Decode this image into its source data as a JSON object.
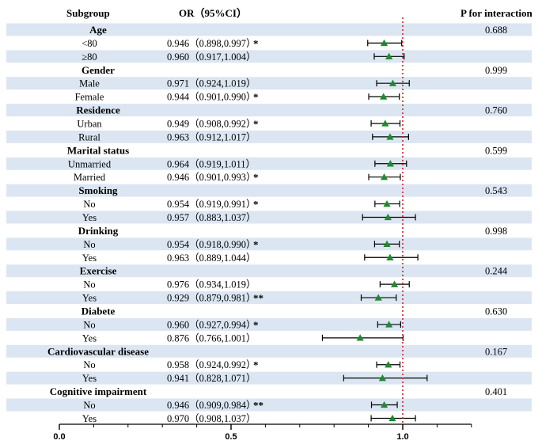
{
  "headers": {
    "subgroup": "Subgroup",
    "or": "OR（95%CI）",
    "p_interaction": "P for interaction"
  },
  "colors": {
    "stripe": "#dce6f2",
    "marker": "#1e8a2e",
    "reference_line": "#e8141a",
    "text": "#000000"
  },
  "chart_data": {
    "type": "forest",
    "title": "",
    "xlabel": "",
    "ylabel": "",
    "xlim": [
      0.0,
      1.2
    ],
    "x_ticks": [
      0.0,
      0.5,
      1.0
    ],
    "x_tick_labels": [
      "0.0",
      "0.5",
      "1.0"
    ],
    "reference_value": 1.0,
    "rows": [
      {
        "kind": "group",
        "label": "Age",
        "p": "0.688"
      },
      {
        "kind": "item",
        "label": "<80",
        "ci_text": "0.946（0.898,0.997）",
        "sig": "*",
        "or": 0.946,
        "lo": 0.898,
        "hi": 0.997
      },
      {
        "kind": "item",
        "label": "≥80",
        "ci_text": "0.960（0.917,1.004）",
        "sig": "",
        "or": 0.96,
        "lo": 0.917,
        "hi": 1.004
      },
      {
        "kind": "group",
        "label": "Gender",
        "p": "0.999"
      },
      {
        "kind": "item",
        "label": "Male",
        "ci_text": "0.971（0.924,1.019）",
        "sig": "",
        "or": 0.971,
        "lo": 0.924,
        "hi": 1.019
      },
      {
        "kind": "item",
        "label": "Female",
        "ci_text": "0.944（0.901,0.990）",
        "sig": "*",
        "or": 0.944,
        "lo": 0.901,
        "hi": 0.99
      },
      {
        "kind": "group",
        "label": "Residence",
        "p": "0.760"
      },
      {
        "kind": "item",
        "label": "Urban",
        "ci_text": "0.949（0.908,0.992）",
        "sig": "*",
        "or": 0.949,
        "lo": 0.908,
        "hi": 0.992
      },
      {
        "kind": "item",
        "label": "Rural",
        "ci_text": "0.963（0.912,1.017）",
        "sig": "",
        "or": 0.963,
        "lo": 0.912,
        "hi": 1.017
      },
      {
        "kind": "group",
        "label": "Marital status",
        "p": "0.599"
      },
      {
        "kind": "item",
        "label": "Unmarried",
        "ci_text": "0.964（0.919,1.011）",
        "sig": "",
        "or": 0.964,
        "lo": 0.919,
        "hi": 1.011
      },
      {
        "kind": "item",
        "label": "Married",
        "ci_text": "0.946（0.901,0.993）",
        "sig": "*",
        "or": 0.946,
        "lo": 0.901,
        "hi": 0.993
      },
      {
        "kind": "group",
        "label": "Smoking",
        "p": "0.543"
      },
      {
        "kind": "item",
        "label": "No",
        "ci_text": "0.954（0.919,0.991）",
        "sig": "*",
        "or": 0.954,
        "lo": 0.919,
        "hi": 0.991
      },
      {
        "kind": "item",
        "label": "Yes",
        "ci_text": "0.957（0.883,1.037）",
        "sig": "",
        "or": 0.957,
        "lo": 0.883,
        "hi": 1.037
      },
      {
        "kind": "group",
        "label": "Drinking",
        "p": "0.998"
      },
      {
        "kind": "item",
        "label": "No",
        "ci_text": "0.954（0.918,0.990）",
        "sig": "*",
        "or": 0.954,
        "lo": 0.918,
        "hi": 0.99
      },
      {
        "kind": "item",
        "label": "Yes",
        "ci_text": "0.963（0.889,1.044）",
        "sig": "",
        "or": 0.963,
        "lo": 0.889,
        "hi": 1.044
      },
      {
        "kind": "group",
        "label": "Exercise",
        "p": "0.244"
      },
      {
        "kind": "item",
        "label": "No",
        "ci_text": "0.976（0.934,1.019）",
        "sig": "",
        "or": 0.976,
        "lo": 0.934,
        "hi": 1.019
      },
      {
        "kind": "item",
        "label": "Yes",
        "ci_text": "0.929（0.879,0.981）",
        "sig": "**",
        "or": 0.929,
        "lo": 0.879,
        "hi": 0.981
      },
      {
        "kind": "group",
        "label": "Diabete",
        "p": "0.630"
      },
      {
        "kind": "item",
        "label": "No",
        "ci_text": "0.960（0.927,0.994）",
        "sig": "*",
        "or": 0.96,
        "lo": 0.927,
        "hi": 0.994
      },
      {
        "kind": "item",
        "label": "Yes",
        "ci_text": "0.876（0.766,1.001）",
        "sig": "",
        "or": 0.876,
        "lo": 0.766,
        "hi": 1.001
      },
      {
        "kind": "group",
        "label": "Cardiovascular disease",
        "p": "0.167"
      },
      {
        "kind": "item",
        "label": "No",
        "ci_text": "0.958（0.924,0.992）",
        "sig": "*",
        "or": 0.958,
        "lo": 0.924,
        "hi": 0.992
      },
      {
        "kind": "item",
        "label": "Yes",
        "ci_text": "0.941（0.828,1.071）",
        "sig": "",
        "or": 0.941,
        "lo": 0.828,
        "hi": 1.071
      },
      {
        "kind": "group",
        "label": "Cognitive impairment",
        "p": "0.401"
      },
      {
        "kind": "item",
        "label": "No",
        "ci_text": "0.946（0.909,0.984）",
        "sig": "**",
        "or": 0.946,
        "lo": 0.909,
        "hi": 0.984
      },
      {
        "kind": "item",
        "label": "Yes",
        "ci_text": "0.970（0.908,1.037）",
        "sig": "",
        "or": 0.97,
        "lo": 0.908,
        "hi": 1.037
      }
    ]
  }
}
